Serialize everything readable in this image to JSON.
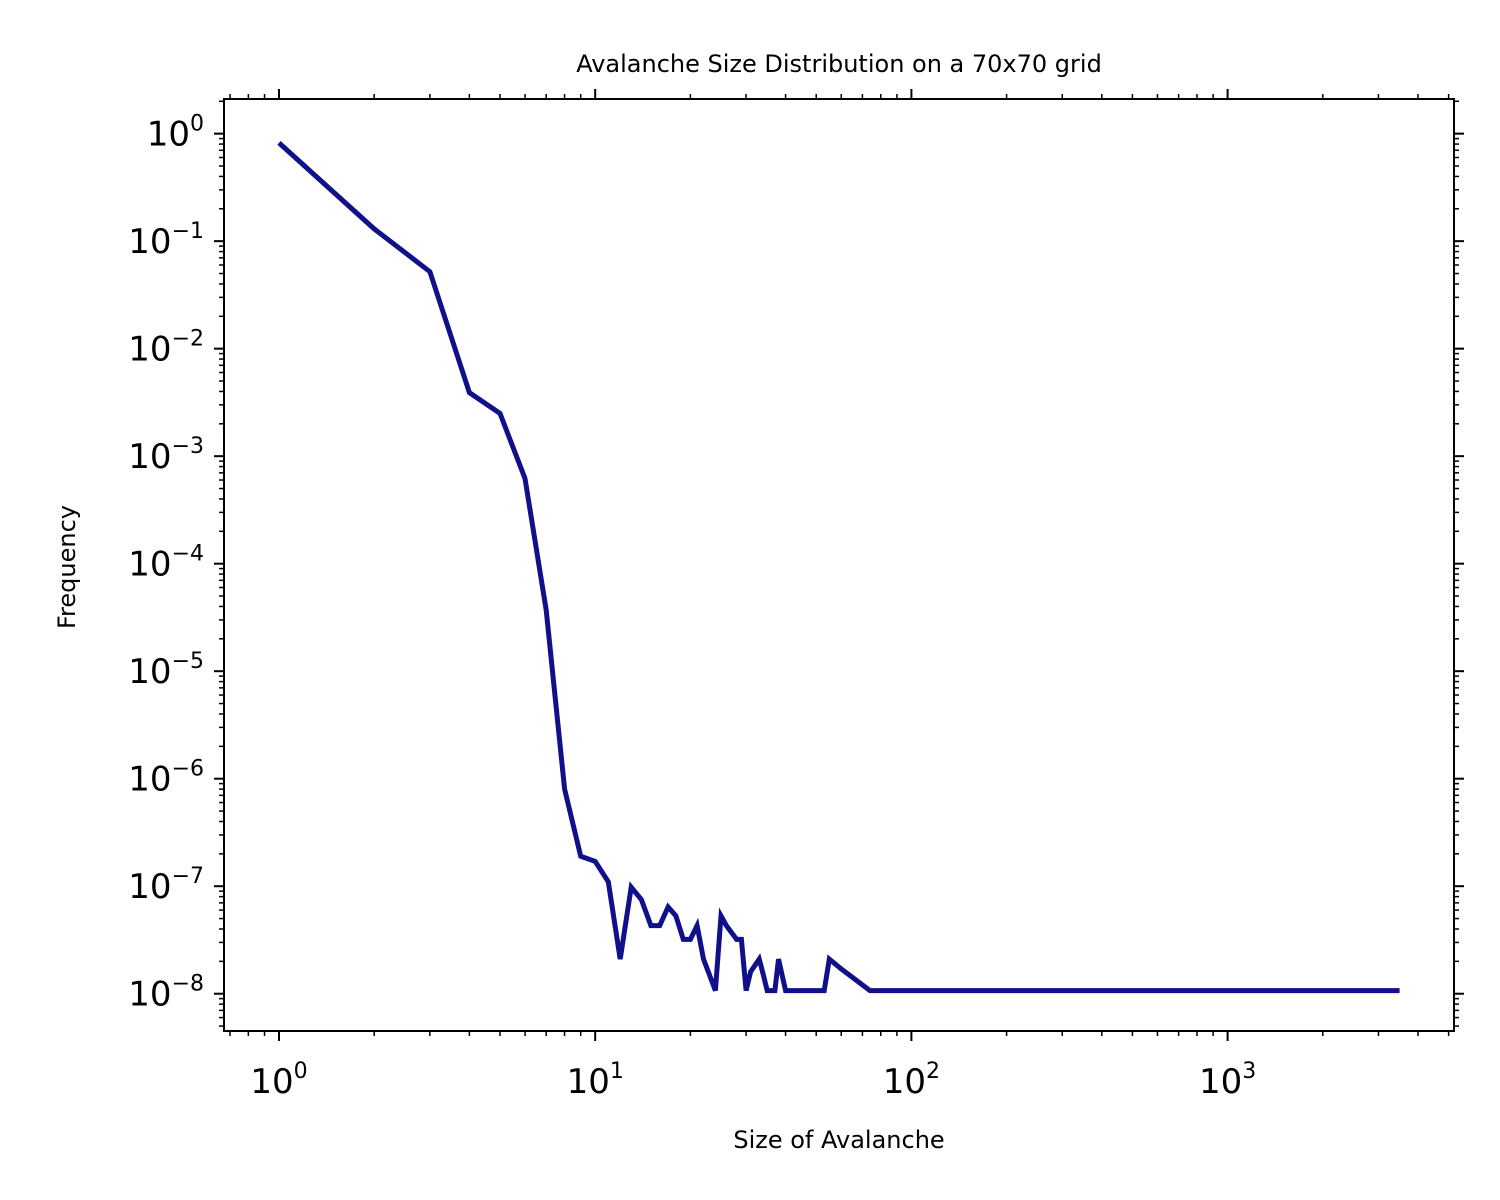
{
  "chart_data": {
    "type": "line",
    "title": "Avalanche Size Distribution on a 70x70 grid",
    "xlabel": "Size of Avalanche",
    "ylabel": "Frequency",
    "xscale": "log",
    "yscale": "log",
    "xlim": [
      0.67,
      5200
    ],
    "ylim": [
      4.5e-09,
      2.1
    ],
    "grid": false,
    "x_major_ticks": [
      1,
      10,
      100,
      1000
    ],
    "x_tick_labels": [
      {
        "base": "10",
        "exp": "0"
      },
      {
        "base": "10",
        "exp": "1"
      },
      {
        "base": "10",
        "exp": "2"
      },
      {
        "base": "10",
        "exp": "3"
      }
    ],
    "y_major_ticks": [
      1,
      0.1,
      0.01,
      0.001,
      0.0001,
      1e-05,
      1e-06,
      1e-07,
      1e-08
    ],
    "y_tick_labels": [
      {
        "base": "10",
        "exp": "0"
      },
      {
        "base": "10",
        "exp": "−1"
      },
      {
        "base": "10",
        "exp": "−2"
      },
      {
        "base": "10",
        "exp": "−3"
      },
      {
        "base": "10",
        "exp": "−4"
      },
      {
        "base": "10",
        "exp": "−5"
      },
      {
        "base": "10",
        "exp": "−6"
      },
      {
        "base": "10",
        "exp": "−7"
      },
      {
        "base": "10",
        "exp": "−8"
      }
    ],
    "series": [
      {
        "color": "#10108a",
        "x": [
          1,
          2,
          3,
          4,
          5,
          6,
          7,
          8,
          9,
          10,
          11,
          12,
          13,
          14,
          15,
          16,
          17,
          18,
          19,
          20,
          21,
          22,
          24,
          25,
          26,
          28,
          29,
          30,
          31,
          33,
          34,
          35,
          37,
          38,
          40,
          50,
          53,
          55,
          60,
          74,
          3500
        ],
        "y": [
          0.82,
          0.13,
          0.052,
          0.0039,
          0.0025,
          0.00062,
          3.7e-05,
          8e-07,
          1.9e-07,
          1.7e-07,
          1.1e-07,
          2.1e-08,
          9.8e-08,
          7.5e-08,
          4.3e-08,
          4.3e-08,
          6.4e-08,
          5.3e-08,
          3.2e-08,
          3.2e-08,
          4.3e-08,
          2.1e-08,
          1.07e-08,
          5.3e-08,
          4.3e-08,
          3.2e-08,
          3.2e-08,
          1.07e-08,
          1.6e-08,
          2.1e-08,
          1.5e-08,
          1.07e-08,
          1.07e-08,
          2.1e-08,
          1.07e-08,
          1.07e-08,
          1.07e-08,
          2.1e-08,
          1.7e-08,
          1.07e-08,
          1.07e-08
        ]
      }
    ]
  }
}
